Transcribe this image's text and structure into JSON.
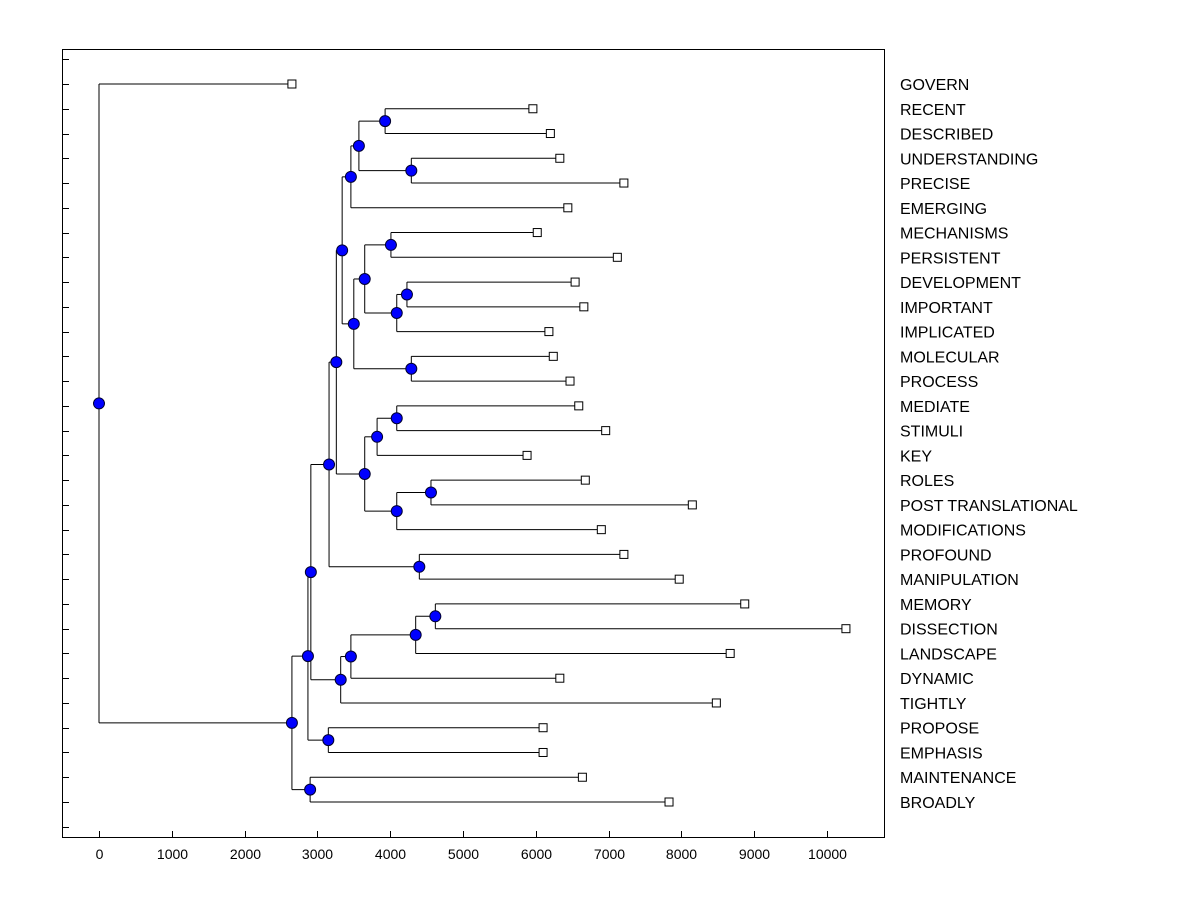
{
  "chart_data": {
    "type": "dendrogram",
    "title": "",
    "xlabel": "",
    "ylabel": "",
    "xlim": [
      -500,
      10800
    ],
    "xticks": [
      0,
      1000,
      2000,
      3000,
      4000,
      5000,
      6000,
      7000,
      8000,
      9000,
      10000
    ],
    "xtick_labels": [
      "0",
      "1000",
      "2000",
      "3000",
      "4000",
      "5000",
      "6000",
      "7000",
      "8000",
      "9000",
      "10000"
    ],
    "grid": false,
    "node_color": "#0000ff",
    "leaves": [
      {
        "name": "GOVERN",
        "value": 2650
      },
      {
        "name": "RECENT",
        "value": 5960
      },
      {
        "name": "DESCRIBED",
        "value": 6200
      },
      {
        "name": "UNDERSTANDING",
        "value": 6330
      },
      {
        "name": "PRECISE",
        "value": 7210
      },
      {
        "name": "EMERGING",
        "value": 6440
      },
      {
        "name": "MECHANISMS",
        "value": 6020
      },
      {
        "name": "PERSISTENT",
        "value": 7120
      },
      {
        "name": "DEVELOPMENT",
        "value": 6540
      },
      {
        "name": "IMPORTANT",
        "value": 6660
      },
      {
        "name": "IMPLICATED",
        "value": 6180
      },
      {
        "name": "MOLECULAR",
        "value": 6240
      },
      {
        "name": "PROCESS",
        "value": 6470
      },
      {
        "name": "MEDIATE",
        "value": 6590
      },
      {
        "name": "STIMULI",
        "value": 6960
      },
      {
        "name": "KEY",
        "value": 5880
      },
      {
        "name": "ROLES",
        "value": 6680
      },
      {
        "name": "POST TRANSLATIONAL",
        "value": 8150
      },
      {
        "name": "MODIFICATIONS",
        "value": 6900
      },
      {
        "name": "PROFOUND",
        "value": 7210
      },
      {
        "name": "MANIPULATION",
        "value": 7970
      },
      {
        "name": "MEMORY",
        "value": 8870
      },
      {
        "name": "DISSECTION",
        "value": 10260
      },
      {
        "name": "LANDSCAPE",
        "value": 8670
      },
      {
        "name": "DYNAMIC",
        "value": 6330
      },
      {
        "name": "TIGHTLY",
        "value": 8480
      },
      {
        "name": "PROPOSE",
        "value": 6100
      },
      {
        "name": "EMPHASIS",
        "value": 6100
      },
      {
        "name": "MAINTENANCE",
        "value": 6640
      },
      {
        "name": "BROADLY",
        "value": 7830
      }
    ],
    "tree": {
      "h": 0,
      "c": [
        0,
        {
          "h": 2650,
          "c": [
            {
              "h": 2870,
              "c": [
                {
                  "h": 2910,
                  "c": [
                    {
                      "h": 3160,
                      "c": [
                        {
                          "h": 3260,
                          "c": [
                            {
                              "h": 3340,
                              "c": [
                                {
                                  "h": 3460,
                                  "c": [
                                    {
                                      "h": 3570,
                                      "c": [
                                        {
                                          "h": 3930,
                                          "c": [
                                            1,
                                            2
                                          ]
                                        },
                                        {
                                          "h": 4290,
                                          "c": [
                                            3,
                                            4
                                          ]
                                        }
                                      ]
                                    },
                                    5
                                  ]
                                },
                                {
                                  "h": 3500,
                                  "c": [
                                    {
                                      "h": 3650,
                                      "c": [
                                        {
                                          "h": 4010,
                                          "c": [
                                            6,
                                            7
                                          ]
                                        },
                                        {
                                          "h": 4090,
                                          "c": [
                                            {
                                              "h": 4230,
                                              "c": [
                                                8,
                                                9
                                              ]
                                            },
                                            10
                                          ]
                                        }
                                      ]
                                    },
                                    {
                                      "h": 4290,
                                      "c": [
                                        11,
                                        12
                                      ]
                                    }
                                  ]
                                }
                              ]
                            },
                            {
                              "h": 3650,
                              "c": [
                                {
                                  "h": 3820,
                                  "c": [
                                    {
                                      "h": 4090,
                                      "c": [
                                        13,
                                        14
                                      ]
                                    },
                                    15
                                  ]
                                },
                                {
                                  "h": 4090,
                                  "c": [
                                    {
                                      "h": 4560,
                                      "c": [
                                        16,
                                        17
                                      ]
                                    },
                                    18
                                  ]
                                }
                              ]
                            }
                          ]
                        },
                        {
                          "h": 4400,
                          "c": [
                            19,
                            20
                          ]
                        }
                      ]
                    },
                    {
                      "h": 3320,
                      "c": [
                        {
                          "h": 3460,
                          "c": [
                            {
                              "h": 4350,
                              "c": [
                                {
                                  "h": 4620,
                                  "c": [
                                    21,
                                    22
                                  ]
                                },
                                23
                              ]
                            },
                            24
                          ]
                        },
                        25
                      ]
                    }
                  ]
                },
                {
                  "h": 3150,
                  "c": [
                    26,
                    27
                  ]
                }
              ]
            },
            {
              "h": 2900,
              "c": [
                28,
                29
              ]
            }
          ]
        }
      ]
    }
  }
}
